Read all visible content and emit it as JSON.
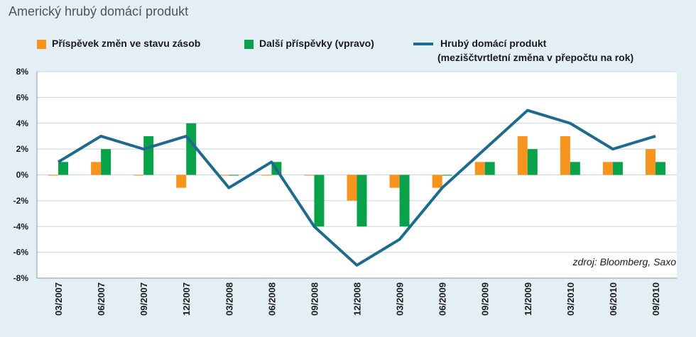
{
  "chart_data": {
    "type": "bar+line",
    "title": "Americký hrubý domácí produkt",
    "categories": [
      "03/2007",
      "06/2007",
      "09/2007",
      "12/2007",
      "03/2008",
      "06/2008",
      "09/2008",
      "12/2008",
      "03/2009",
      "06/2009",
      "09/2009",
      "12/2009",
      "03/2010",
      "06/2010",
      "09/2010"
    ],
    "y_ticks": [
      "8%",
      "6%",
      "4%",
      "2%",
      "0%",
      "-2%",
      "-4%",
      "-6%",
      "-8%"
    ],
    "ylim": [
      -8,
      8
    ],
    "grid": true,
    "legend_position": "top",
    "series": [
      {
        "name": "Příspěvek změn ve stavu zásob",
        "kind": "bar",
        "color": "#f7941d",
        "values": [
          0,
          1,
          0,
          -1,
          0,
          0,
          0,
          -2,
          -1,
          -1,
          1,
          3,
          3,
          1,
          2
        ]
      },
      {
        "name": "Další příspěvky (vpravo)",
        "kind": "bar",
        "color": "#0aa14b",
        "values": [
          1,
          2,
          3,
          4,
          0,
          1,
          -4,
          -4,
          -4,
          0,
          1,
          2,
          1,
          1,
          1
        ]
      },
      {
        "name": "Hrubý domácí produkt",
        "name_line2": "(meziščtvrtletní změna v přepočtu na rok)",
        "kind": "line",
        "color": "#1f6b8e",
        "values": [
          1,
          3,
          2,
          3,
          -1,
          1,
          -4,
          -7,
          -5,
          -1,
          2,
          5,
          4,
          2,
          3
        ]
      }
    ],
    "source": "zdroj: Bloomberg, Saxo"
  }
}
